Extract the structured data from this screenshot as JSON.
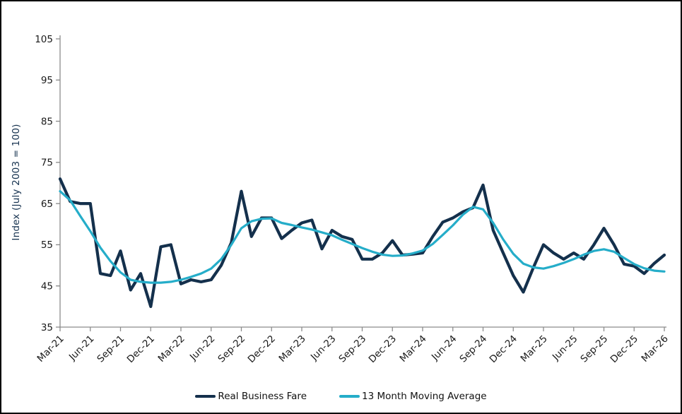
{
  "chart_data": {
    "type": "line",
    "title": "",
    "ylabel": "Index (July 2003 = 100)",
    "xlabel": "",
    "ylim": [
      35,
      105
    ],
    "y_tick_interval": 10,
    "y_minor_tick_interval": 5,
    "y_tick_labels": [
      "105",
      "95",
      "85",
      "75",
      "65",
      "55",
      "45",
      "35"
    ],
    "x_tick_labels": [
      "Mar-21",
      "Jun-21",
      "Sep-21",
      "Dec-21",
      "Mar-22",
      "Jun-22",
      "Sep-22",
      "Dec-22",
      "Mar-23",
      "Jun-23",
      "Sep-23",
      "Dec-23",
      "Mar-24",
      "Jun-24",
      "Sep-24",
      "Dec-24",
      "Mar-25",
      "Jun-25",
      "Sep-25",
      "Dec-25",
      "Mar-26"
    ],
    "x_tick_every_n_months": 3,
    "grid": false,
    "legend_position": "bottom",
    "months": [
      "Mar-21",
      "Apr-21",
      "May-21",
      "Jun-21",
      "Jul-21",
      "Aug-21",
      "Sep-21",
      "Oct-21",
      "Nov-21",
      "Dec-21",
      "Jan-22",
      "Feb-22",
      "Mar-22",
      "Apr-22",
      "May-22",
      "Jun-22",
      "Jul-22",
      "Aug-22",
      "Sep-22",
      "Oct-22",
      "Nov-22",
      "Dec-22",
      "Jan-23",
      "Feb-23",
      "Mar-23",
      "Apr-23",
      "May-23",
      "Jun-23",
      "Jul-23",
      "Aug-23",
      "Sep-23",
      "Oct-23",
      "Nov-23",
      "Dec-23",
      "Jan-24",
      "Feb-24",
      "Mar-24",
      "Apr-24",
      "May-24",
      "Jun-24",
      "Jul-24",
      "Aug-24",
      "Sep-24",
      "Oct-24",
      "Nov-24",
      "Dec-24",
      "Jan-25",
      "Feb-25",
      "Mar-25",
      "Apr-25",
      "May-25",
      "Jun-25",
      "Jul-25",
      "Aug-25",
      "Sep-25",
      "Oct-25",
      "Nov-25",
      "Dec-25",
      "Jan-26",
      "Feb-26",
      "Mar-26"
    ],
    "series": [
      {
        "name": "Real Business Fare",
        "color": "#14304c",
        "stroke_width": 4.2,
        "values": [
          71,
          65.5,
          65,
          65,
          48,
          47.5,
          53.5,
          44,
          48,
          40,
          54.5,
          55,
          45.5,
          46.5,
          46,
          46.5,
          50,
          55.5,
          68,
          57,
          61.5,
          61.5,
          56.5,
          58.5,
          60.3,
          61,
          54,
          58.5,
          57,
          56.3,
          51.5,
          51.5,
          53,
          56,
          52.5,
          52.7,
          53,
          57,
          60.5,
          61.5,
          63,
          64,
          69.5,
          58.5,
          53,
          47.5,
          43.5,
          49.5,
          55,
          53,
          51.5,
          53,
          51.5,
          55,
          59,
          55,
          50.3,
          49.8,
          48,
          50.5,
          52.5
        ]
      },
      {
        "name": "13 Month Moving Average",
        "color": "#25adc9",
        "stroke_width": 3.2,
        "values": [
          68,
          65.8,
          62,
          58.3,
          54.3,
          51,
          48.3,
          46.5,
          46,
          45.8,
          45.8,
          46,
          46.5,
          47.2,
          48,
          49.2,
          51.5,
          55,
          59,
          60.7,
          61.3,
          61.4,
          60.3,
          59.8,
          59.2,
          58.7,
          58,
          57.3,
          56.2,
          55.2,
          54.2,
          53.3,
          52.6,
          52.3,
          52.4,
          52.9,
          53.6,
          55.2,
          57.4,
          59.7,
          62.3,
          64.2,
          63.6,
          60.3,
          56.3,
          52.8,
          50.4,
          49.5,
          49.2,
          49.8,
          50.6,
          51.5,
          52.6,
          53.5,
          53.9,
          53.3,
          51.8,
          50.3,
          49.3,
          48.7,
          48.5
        ]
      }
    ]
  },
  "colors": {
    "background": "#ffffff",
    "border": "#000000",
    "axis": "#8c8c8c",
    "tick_label": "#1a1a1a",
    "navy": "#14304c",
    "cyan": "#25adc9"
  }
}
